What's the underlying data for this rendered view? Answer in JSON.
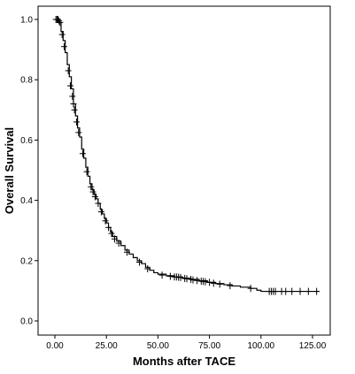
{
  "chart_data": {
    "type": "line",
    "title": "",
    "xlabel": "Months after TACE",
    "ylabel": "Overall Survival",
    "xlim": [
      0,
      132
    ],
    "ylim": [
      0,
      1.02
    ],
    "x_ticks": [
      {
        "value": 0,
        "label": "0.00"
      },
      {
        "value": 25,
        "label": "25.00"
      },
      {
        "value": 50,
        "label": "50.00"
      },
      {
        "value": 75,
        "label": "75.00"
      },
      {
        "value": 100,
        "label": "100.00"
      },
      {
        "value": 125,
        "label": "125.00"
      }
    ],
    "y_ticks": [
      {
        "value": 0.0,
        "label": "0.0"
      },
      {
        "value": 0.2,
        "label": "0.2"
      },
      {
        "value": 0.4,
        "label": "0.4"
      },
      {
        "value": 0.6,
        "label": "0.6"
      },
      {
        "value": 0.8,
        "label": "0.8"
      },
      {
        "value": 1.0,
        "label": "1.0"
      }
    ],
    "grid": false,
    "legend": "none",
    "line_color": "#000000",
    "censor_marker": "+",
    "series": [
      {
        "values": [
          [
            0,
            1.0
          ],
          [
            1.0,
            1.0
          ],
          [
            2.0,
            0.99
          ],
          [
            3.0,
            0.96
          ],
          [
            4.0,
            0.93
          ],
          [
            5.0,
            0.89
          ],
          [
            6.0,
            0.85
          ],
          [
            7.0,
            0.81
          ],
          [
            8.0,
            0.77
          ],
          [
            9.0,
            0.72
          ],
          [
            10.0,
            0.68
          ],
          [
            11.0,
            0.64
          ],
          [
            12.0,
            0.61
          ],
          [
            13.0,
            0.57
          ],
          [
            14.0,
            0.54
          ],
          [
            15.0,
            0.51
          ],
          [
            16.0,
            0.48
          ],
          [
            17.0,
            0.455
          ],
          [
            18.0,
            0.435
          ],
          [
            19.0,
            0.42
          ],
          [
            20.0,
            0.405
          ],
          [
            21.0,
            0.39
          ],
          [
            22.0,
            0.37
          ],
          [
            23.0,
            0.355
          ],
          [
            24.0,
            0.34
          ],
          [
            25.0,
            0.325
          ],
          [
            26.0,
            0.31
          ],
          [
            27.0,
            0.295
          ],
          [
            28.0,
            0.28
          ],
          [
            30.0,
            0.265
          ],
          [
            32.0,
            0.25
          ],
          [
            34.0,
            0.235
          ],
          [
            36.0,
            0.222
          ],
          [
            38.0,
            0.21
          ],
          [
            40.0,
            0.2
          ],
          [
            42.0,
            0.19
          ],
          [
            44.0,
            0.178
          ],
          [
            46.0,
            0.168
          ],
          [
            48.0,
            0.16
          ],
          [
            50.0,
            0.155
          ],
          [
            54.0,
            0.15
          ],
          [
            58.0,
            0.146
          ],
          [
            62.0,
            0.142
          ],
          [
            66.0,
            0.138
          ],
          [
            70.0,
            0.133
          ],
          [
            74.0,
            0.128
          ],
          [
            78.0,
            0.124
          ],
          [
            82.0,
            0.12
          ],
          [
            86.0,
            0.116
          ],
          [
            90.0,
            0.112
          ],
          [
            95.0,
            0.108
          ],
          [
            98.0,
            0.102
          ],
          [
            100.0,
            0.098
          ],
          [
            110.0,
            0.098
          ],
          [
            120.0,
            0.098
          ],
          [
            128.0,
            0.098
          ]
        ],
        "censored": [
          [
            0.5,
            1.0
          ],
          [
            1.0,
            1.0
          ],
          [
            1.5,
            1.0
          ],
          [
            2.0,
            0.995
          ],
          [
            2.5,
            0.99
          ],
          [
            3.5,
            0.95
          ],
          [
            4.5,
            0.91
          ],
          [
            6.5,
            0.83
          ],
          [
            7.5,
            0.78
          ],
          [
            8.5,
            0.745
          ],
          [
            9.0,
            0.72
          ],
          [
            9.5,
            0.7
          ],
          [
            10.5,
            0.66
          ],
          [
            11.5,
            0.625
          ],
          [
            13.5,
            0.555
          ],
          [
            15.5,
            0.495
          ],
          [
            17.5,
            0.445
          ],
          [
            18.5,
            0.428
          ],
          [
            19.5,
            0.412
          ],
          [
            21.0,
            0.39
          ],
          [
            22.5,
            0.362
          ],
          [
            24.5,
            0.332
          ],
          [
            26.0,
            0.31
          ],
          [
            27.5,
            0.29
          ],
          [
            29.0,
            0.272
          ],
          [
            31.0,
            0.258
          ],
          [
            35.0,
            0.228
          ],
          [
            41.0,
            0.195
          ],
          [
            45.0,
            0.173
          ],
          [
            52.0,
            0.152
          ],
          [
            56.0,
            0.148
          ],
          [
            58.0,
            0.146
          ],
          [
            59.0,
            0.146
          ],
          [
            60.0,
            0.145
          ],
          [
            61.0,
            0.144
          ],
          [
            63.0,
            0.141
          ],
          [
            64.0,
            0.14
          ],
          [
            66.0,
            0.138
          ],
          [
            67.0,
            0.136
          ],
          [
            69.0,
            0.134
          ],
          [
            71.0,
            0.132
          ],
          [
            72.0,
            0.131
          ],
          [
            73.0,
            0.13
          ],
          [
            75.0,
            0.128
          ],
          [
            77.0,
            0.125
          ],
          [
            80.0,
            0.122
          ],
          [
            85.0,
            0.117
          ],
          [
            95.0,
            0.108
          ],
          [
            104.0,
            0.098
          ],
          [
            105.0,
            0.098
          ],
          [
            106.0,
            0.098
          ],
          [
            107.0,
            0.098
          ],
          [
            110.0,
            0.098
          ],
          [
            112.0,
            0.098
          ],
          [
            115.0,
            0.098
          ],
          [
            119.0,
            0.098
          ],
          [
            123.0,
            0.098
          ],
          [
            127.0,
            0.098
          ]
        ]
      }
    ]
  }
}
